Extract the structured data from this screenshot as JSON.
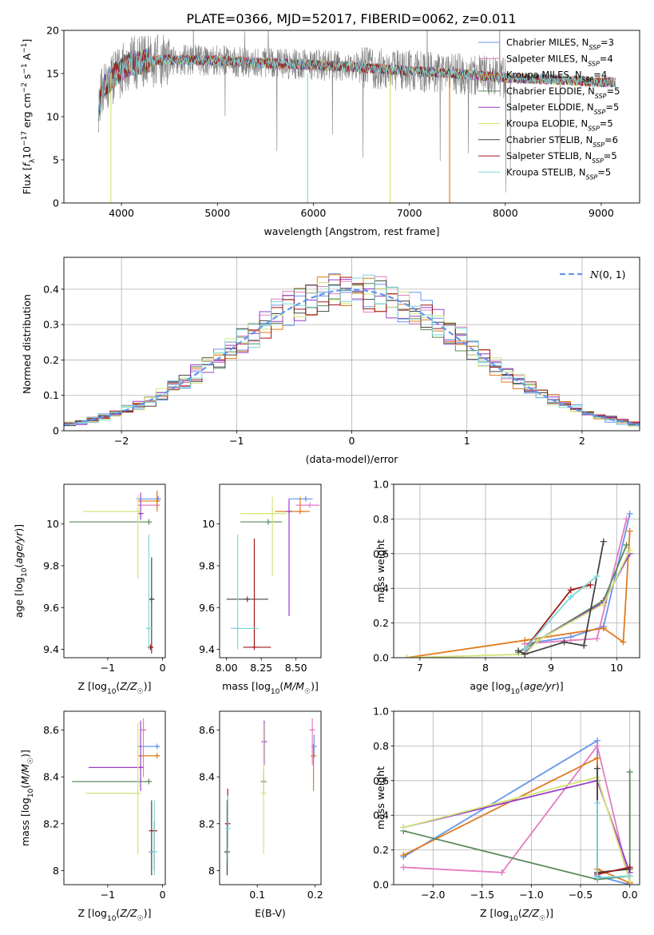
{
  "figure": {
    "title": "PLATE=0366, MJD=52017, FIBERID=0062, z=0.011"
  },
  "colors": {
    "chabrier_miles": "#6495ed",
    "salpeter_miles": "#e27cc0",
    "kroupa_miles": "#e07b1f",
    "chabrier_elodie": "#5a8a5a",
    "salpeter_elodie": "#9a3fc6",
    "kroupa_elodie": "#d2e57a",
    "chabrier_stelib": "#444444",
    "salpeter_stelib": "#a01818",
    "kroupa_stelib": "#7fd6dc",
    "normal_curve": "#6495ed",
    "data_spectrum": "#7f7f7f"
  },
  "chart_data": [
    {
      "id": "spectrum",
      "type": "line",
      "xlabel": "wavelength [Angstrom, rest frame]",
      "ylabel": "Flux [f_λ10^-17 erg cm^-2 s^-1 A^-1]",
      "xlim": [
        3400,
        9400
      ],
      "ylim": [
        0,
        20
      ],
      "xticks": [
        4000,
        5000,
        6000,
        7000,
        8000,
        9000
      ],
      "yticks": [
        0,
        5,
        10,
        15,
        20
      ],
      "grid": false,
      "legend_position": "top-right",
      "legend": [
        "Chabrier MILES, N_SSP=3",
        "Salpeter MILES, N_SSP=4",
        "Kroupa MILES, N_SSP=4",
        "Chabrier ELODIE, N_SSP=5",
        "Salpeter ELODIE, N_SSP=5",
        "Kroupa ELODIE, N_SSP=5",
        "Chabrier STELIB, N_SSP=6",
        "Salpeter STELIB, N_SSP=5",
        "Kroupa STELIB, N_SSP=5"
      ],
      "data_range": [
        3760,
        9150
      ],
      "continuum": {
        "x": [
          3760,
          3800,
          3900,
          4000,
          4100,
          4300,
          4500,
          5000,
          5500,
          6000,
          6500,
          7000,
          7500,
          8000,
          8500,
          9000,
          9150
        ],
        "y": [
          11,
          13,
          14.5,
          15.5,
          16.2,
          16.5,
          16.6,
          16.5,
          16.2,
          16,
          15.7,
          15.3,
          15,
          14.5,
          14.3,
          14,
          14
        ]
      }
    },
    {
      "id": "residuals",
      "type": "histogram",
      "xlabel": "(data-model)/error",
      "ylabel": "Normed distribution",
      "xlim": [
        -2.5,
        2.5
      ],
      "ylim": [
        0,
        0.49
      ],
      "xticks": [
        -2,
        -1,
        0,
        1,
        2
      ],
      "yticks": [
        0.0,
        0.1,
        0.2,
        0.3,
        0.4
      ],
      "grid": true,
      "legend_position": "top-right",
      "legend": [
        "N(0, 1)"
      ],
      "bin_edges": [
        -2.6,
        2.6
      ],
      "bin_width": 0.1
    },
    {
      "id": "age_vs_Z",
      "type": "errorbar",
      "xlabel": "Z [log10(Z/Z☉)]",
      "ylabel": "age  [log10(age/yr)]",
      "xlim": [
        -1.8,
        0.05
      ],
      "ylim": [
        9.36,
        10.19
      ],
      "xticks": [
        -1,
        0
      ],
      "yticks": [
        9.4,
        9.6,
        9.8,
        10.0
      ],
      "points": [
        {
          "series": "chabrier_miles",
          "x": -0.08,
          "xerr": [
            0.4,
            0.05
          ],
          "y": 10.12,
          "yerr": [
            0,
            0
          ]
        },
        {
          "series": "salpeter_miles",
          "x": -0.1,
          "xerr": [
            0.35,
            0.05
          ],
          "y": 10.09,
          "yerr": [
            0,
            0.06
          ]
        },
        {
          "series": "kroupa_miles",
          "x": -0.1,
          "xerr": [
            0.35,
            0.05
          ],
          "y": 10.11,
          "yerr": [
            0.05,
            0.05
          ]
        },
        {
          "series": "chabrier_elodie",
          "x": -0.25,
          "xerr": [
            1.45,
            0.05
          ],
          "y": 10.01,
          "yerr": [
            0,
            0
          ]
        },
        {
          "series": "salpeter_elodie",
          "x": -0.4,
          "xerr": [
            0.05,
            0.05
          ],
          "y": 10.05,
          "yerr": [
            0.03,
            0.1
          ]
        },
        {
          "series": "kroupa_elodie",
          "x": -0.45,
          "xerr": [
            1.0,
            0.05
          ],
          "y": 10.06,
          "yerr": [
            0.32,
            0.08
          ]
        },
        {
          "series": "chabrier_stelib",
          "x": -0.2,
          "xerr": [
            0.05,
            0.05
          ],
          "y": 9.64,
          "yerr": [
            0.26,
            0.2
          ]
        },
        {
          "series": "salpeter_stelib",
          "x": -0.22,
          "xerr": [
            0,
            0.05
          ],
          "y": 9.41,
          "yerr": [
            0,
            0
          ]
        },
        {
          "series": "kroupa_stelib",
          "x": -0.25,
          "xerr": [
            0.05,
            0.05
          ],
          "y": 9.5,
          "yerr": [
            0.1,
            0.45
          ]
        }
      ]
    },
    {
      "id": "age_vs_mass",
      "type": "errorbar",
      "xlabel": "mass [log10(M/M☉)]",
      "ylabel": "",
      "xlim": [
        7.95,
        8.68
      ],
      "ylim": [
        9.36,
        10.19
      ],
      "xticks": [
        8.0,
        8.25,
        8.5
      ],
      "xticklabels": [
        "8.00",
        "8.25",
        "8.50"
      ],
      "yticks": [
        9.4,
        9.6,
        9.8,
        10.0
      ],
      "points": [
        {
          "series": "chabrier_miles",
          "x": 8.57,
          "xerr": [
            0.12,
            0.05
          ],
          "y": 10.12,
          "yerr": [
            0,
            0
          ]
        },
        {
          "series": "salpeter_miles",
          "x": 8.6,
          "xerr": [
            0.1,
            0.07
          ],
          "y": 10.09,
          "yerr": [
            0,
            0
          ]
        },
        {
          "series": "kroupa_miles",
          "x": 8.53,
          "xerr": [
            0.18,
            0.07
          ],
          "y": 10.06,
          "yerr": [
            0,
            0.07
          ]
        },
        {
          "series": "chabrier_elodie",
          "x": 8.3,
          "xerr": [
            0.2,
            0.1
          ],
          "y": 10.01,
          "yerr": [
            0,
            0
          ]
        },
        {
          "series": "salpeter_elodie",
          "x": 8.45,
          "xerr": [
            0,
            0
          ],
          "y": 10.06,
          "yerr": [
            0.5,
            0.06
          ]
        },
        {
          "series": "kroupa_elodie",
          "x": 8.33,
          "xerr": [
            0.23,
            0.1
          ],
          "y": 10.05,
          "yerr": [
            0.3,
            0.08
          ]
        },
        {
          "series": "chabrier_stelib",
          "x": 8.15,
          "xerr": [
            0.15,
            0.15
          ],
          "y": 9.64,
          "yerr": [
            0,
            0
          ]
        },
        {
          "series": "salpeter_stelib",
          "x": 8.2,
          "xerr": [
            0.08,
            0.12
          ],
          "y": 9.41,
          "yerr": [
            0,
            0.52
          ]
        },
        {
          "series": "kroupa_stelib",
          "x": 8.08,
          "xerr": [
            0.05,
            0.15
          ],
          "y": 9.5,
          "yerr": [
            0.1,
            0.45
          ]
        }
      ]
    },
    {
      "id": "massweight_vs_age",
      "type": "line",
      "xlabel": "age  [log10(age/yr)]",
      "ylabel": "mass weight",
      "xlim": [
        6.6,
        10.35
      ],
      "ylim": [
        0,
        1.0
      ],
      "xticks": [
        7,
        8,
        9,
        10
      ],
      "yticks": [
        0.0,
        0.2,
        0.4,
        0.6,
        0.8,
        1.0
      ],
      "yticklabels": [
        "0.0",
        "0.2",
        "0.4",
        "0.6",
        "0.8",
        "1.0"
      ],
      "grid": true,
      "series": [
        {
          "key": "chabrier_miles",
          "x": [
            8.6,
            9.3,
            9.8,
            10.2
          ],
          "y": [
            0.08,
            0.12,
            0.18,
            0.83
          ]
        },
        {
          "key": "salpeter_miles",
          "x": [
            8.6,
            9.3,
            9.7,
            10.15
          ],
          "y": [
            0.08,
            0.1,
            0.11,
            0.8
          ]
        },
        {
          "key": "kroupa_miles",
          "x": [
            6.8,
            8.6,
            9.8,
            10.1,
            10.2
          ],
          "y": [
            0.0,
            0.1,
            0.17,
            0.09,
            0.73
          ]
        },
        {
          "key": "chabrier_elodie",
          "x": [
            8.5,
            8.8,
            9.8,
            10.15
          ],
          "y": [
            0.03,
            0.1,
            0.33,
            0.65
          ]
        },
        {
          "key": "salpeter_elodie",
          "x": [
            8.6,
            8.8,
            9.8,
            10.2
          ],
          "y": [
            0.03,
            0.1,
            0.32,
            0.6
          ]
        },
        {
          "key": "kroupa_elodie",
          "x": [
            6.8,
            8.6,
            8.8,
            9.8,
            10.2
          ],
          "y": [
            0.0,
            0.02,
            0.1,
            0.31,
            0.62
          ]
        },
        {
          "key": "chabrier_stelib",
          "x": [
            8.5,
            8.6,
            9.2,
            9.5,
            9.8
          ],
          "y": [
            0.04,
            0.02,
            0.09,
            0.07,
            0.67
          ]
        },
        {
          "key": "salpeter_stelib",
          "x": [
            8.6,
            9.3,
            9.6
          ],
          "y": [
            0.05,
            0.39,
            0.42
          ]
        },
        {
          "key": "kroupa_stelib",
          "x": [
            8.6,
            9.3,
            9.7
          ],
          "y": [
            0.05,
            0.35,
            0.47
          ]
        }
      ]
    },
    {
      "id": "mass_vs_Z",
      "type": "errorbar",
      "xlabel": "Z [log10(Z/Z☉)]",
      "ylabel": "mass [log10(M/M☉)]",
      "xlim": [
        -1.8,
        0.05
      ],
      "ylim": [
        7.94,
        8.68
      ],
      "xticks": [
        -1,
        0
      ],
      "yticks": [
        8.0,
        8.2,
        8.4,
        8.6
      ],
      "points": [
        {
          "series": "chabrier_miles",
          "x": -0.1,
          "xerr": [
            0.35,
            0.05
          ],
          "y": 8.53,
          "yerr": [
            0,
            0
          ]
        },
        {
          "series": "salpeter_miles",
          "x": -0.35,
          "xerr": [
            0.05,
            0.05
          ],
          "y": 8.6,
          "yerr": [
            0.2,
            0.05
          ]
        },
        {
          "series": "kroupa_miles",
          "x": -0.1,
          "xerr": [
            0.35,
            0.05
          ],
          "y": 8.49,
          "yerr": [
            0,
            0
          ]
        },
        {
          "series": "chabrier_elodie",
          "x": -0.25,
          "xerr": [
            1.4,
            0.05
          ],
          "y": 8.38,
          "yerr": [
            0,
            0
          ]
        },
        {
          "series": "salpeter_elodie",
          "x": -0.4,
          "xerr": [
            0.95,
            0.05
          ],
          "y": 8.44,
          "yerr": [
            0.1,
            0.2
          ]
        },
        {
          "series": "kroupa_elodie",
          "x": -0.45,
          "xerr": [
            0.95,
            0.05
          ],
          "y": 8.33,
          "yerr": [
            0.26,
            0.3
          ]
        },
        {
          "series": "chabrier_stelib",
          "x": -0.2,
          "xerr": [
            0.05,
            0.05
          ],
          "y": 8.08,
          "yerr": [
            0.1,
            0.22
          ]
        },
        {
          "series": "salpeter_stelib",
          "x": -0.15,
          "xerr": [
            0.1,
            0.05
          ],
          "y": 8.17,
          "yerr": [
            0.17,
            0.04
          ]
        },
        {
          "series": "kroupa_stelib",
          "x": -0.15,
          "xerr": [
            0.1,
            0.05
          ],
          "y": 8.08,
          "yerr": [
            0.1,
            0.22
          ]
        }
      ]
    },
    {
      "id": "mass_vs_ebv",
      "type": "errorbar",
      "xlabel": "E(B-V)",
      "ylabel": "",
      "xlim": [
        0.035,
        0.21
      ],
      "ylim": [
        7.94,
        8.68
      ],
      "xticks": [
        0.1,
        0.2
      ],
      "yticks": [
        8.0,
        8.2,
        8.4,
        8.6
      ],
      "points": [
        {
          "series": "chabrier_miles",
          "x": 0.198,
          "xerr": [
            0,
            0
          ],
          "y": 8.53,
          "yerr": [
            0.05,
            0.05
          ]
        },
        {
          "series": "salpeter_miles",
          "x": 0.195,
          "xerr": [
            0,
            0
          ],
          "y": 8.6,
          "yerr": [
            0.15,
            0.05
          ]
        },
        {
          "series": "kroupa_miles",
          "x": 0.197,
          "xerr": [
            0,
            0
          ],
          "y": 8.49,
          "yerr": [
            0.15,
            0.05
          ]
        },
        {
          "series": "chabrier_elodie",
          "x": 0.111,
          "xerr": [
            0,
            0
          ],
          "y": 8.38,
          "yerr": [
            0.05,
            0.05
          ]
        },
        {
          "series": "salpeter_elodie",
          "x": 0.112,
          "xerr": [
            0,
            0
          ],
          "y": 8.55,
          "yerr": [
            0.1,
            0.09
          ]
        },
        {
          "series": "kroupa_elodie",
          "x": 0.111,
          "xerr": [
            0,
            0
          ],
          "y": 8.33,
          "yerr": [
            0.26,
            0.3
          ]
        },
        {
          "series": "chabrier_stelib",
          "x": 0.048,
          "xerr": [
            0,
            0
          ],
          "y": 8.08,
          "yerr": [
            0.1,
            0.22
          ]
        },
        {
          "series": "salpeter_stelib",
          "x": 0.049,
          "xerr": [
            0,
            0
          ],
          "y": 8.2,
          "yerr": [
            0.1,
            0.15
          ]
        },
        {
          "series": "kroupa_stelib",
          "x": 0.049,
          "xerr": [
            0,
            0
          ],
          "y": 8.18,
          "yerr": [
            0.14,
            0.14
          ]
        }
      ]
    },
    {
      "id": "massweight_vs_Z",
      "type": "line",
      "xlabel": "Z [log10(Z/Z☉)]",
      "ylabel": "mass weight",
      "xlim": [
        -2.4,
        0.1
      ],
      "ylim": [
        0,
        1.0
      ],
      "xticks": [
        -2.0,
        -1.5,
        -1.0,
        -0.5,
        0.0
      ],
      "xticklabels": [
        "−2.0",
        "−1.5",
        "−1.0",
        "−0.5",
        "0.0"
      ],
      "yticks": [
        0.0,
        0.2,
        0.4,
        0.6,
        0.8,
        1.0
      ],
      "yticklabels": [
        "0.0",
        "0.2",
        "0.4",
        "0.6",
        "0.8",
        "1.0"
      ],
      "grid": true,
      "series": [
        {
          "key": "chabrier_miles",
          "x": [
            -2.3,
            -0.33,
            -0.33,
            0.0
          ],
          "y": [
            0.16,
            0.83,
            0.05,
            0.0
          ]
        },
        {
          "key": "salpeter_miles",
          "x": [
            -2.3,
            -1.3,
            -0.33,
            0.0
          ],
          "y": [
            0.1,
            0.07,
            0.8,
            0.01
          ]
        },
        {
          "key": "kroupa_miles",
          "x": [
            -2.3,
            -0.33,
            -0.33,
            0.0
          ],
          "y": [
            0.17,
            0.73,
            0.09,
            0.01
          ]
        },
        {
          "key": "chabrier_elodie",
          "x": [
            -2.3,
            -0.33,
            0.0,
            0.0
          ],
          "y": [
            0.31,
            0.03,
            0.05,
            0.65
          ]
        },
        {
          "key": "salpeter_elodie",
          "x": [
            -2.3,
            -0.33,
            0.0
          ],
          "y": [
            0.33,
            0.6,
            0.07
          ]
        },
        {
          "key": "kroupa_elodie",
          "x": [
            -2.3,
            -0.33,
            0.0
          ],
          "y": [
            0.33,
            0.62,
            0.02
          ]
        },
        {
          "key": "chabrier_stelib",
          "x": [
            -0.33,
            -0.33,
            0.0
          ],
          "y": [
            0.67,
            0.07,
            0.09
          ]
        },
        {
          "key": "salpeter_stelib",
          "x": [
            -0.33,
            0.0
          ],
          "y": [
            0.06,
            0.1
          ]
        },
        {
          "key": "kroupa_stelib",
          "x": [
            -0.33,
            -0.33,
            0.0
          ],
          "y": [
            0.47,
            0.04,
            0.05
          ]
        }
      ]
    }
  ]
}
